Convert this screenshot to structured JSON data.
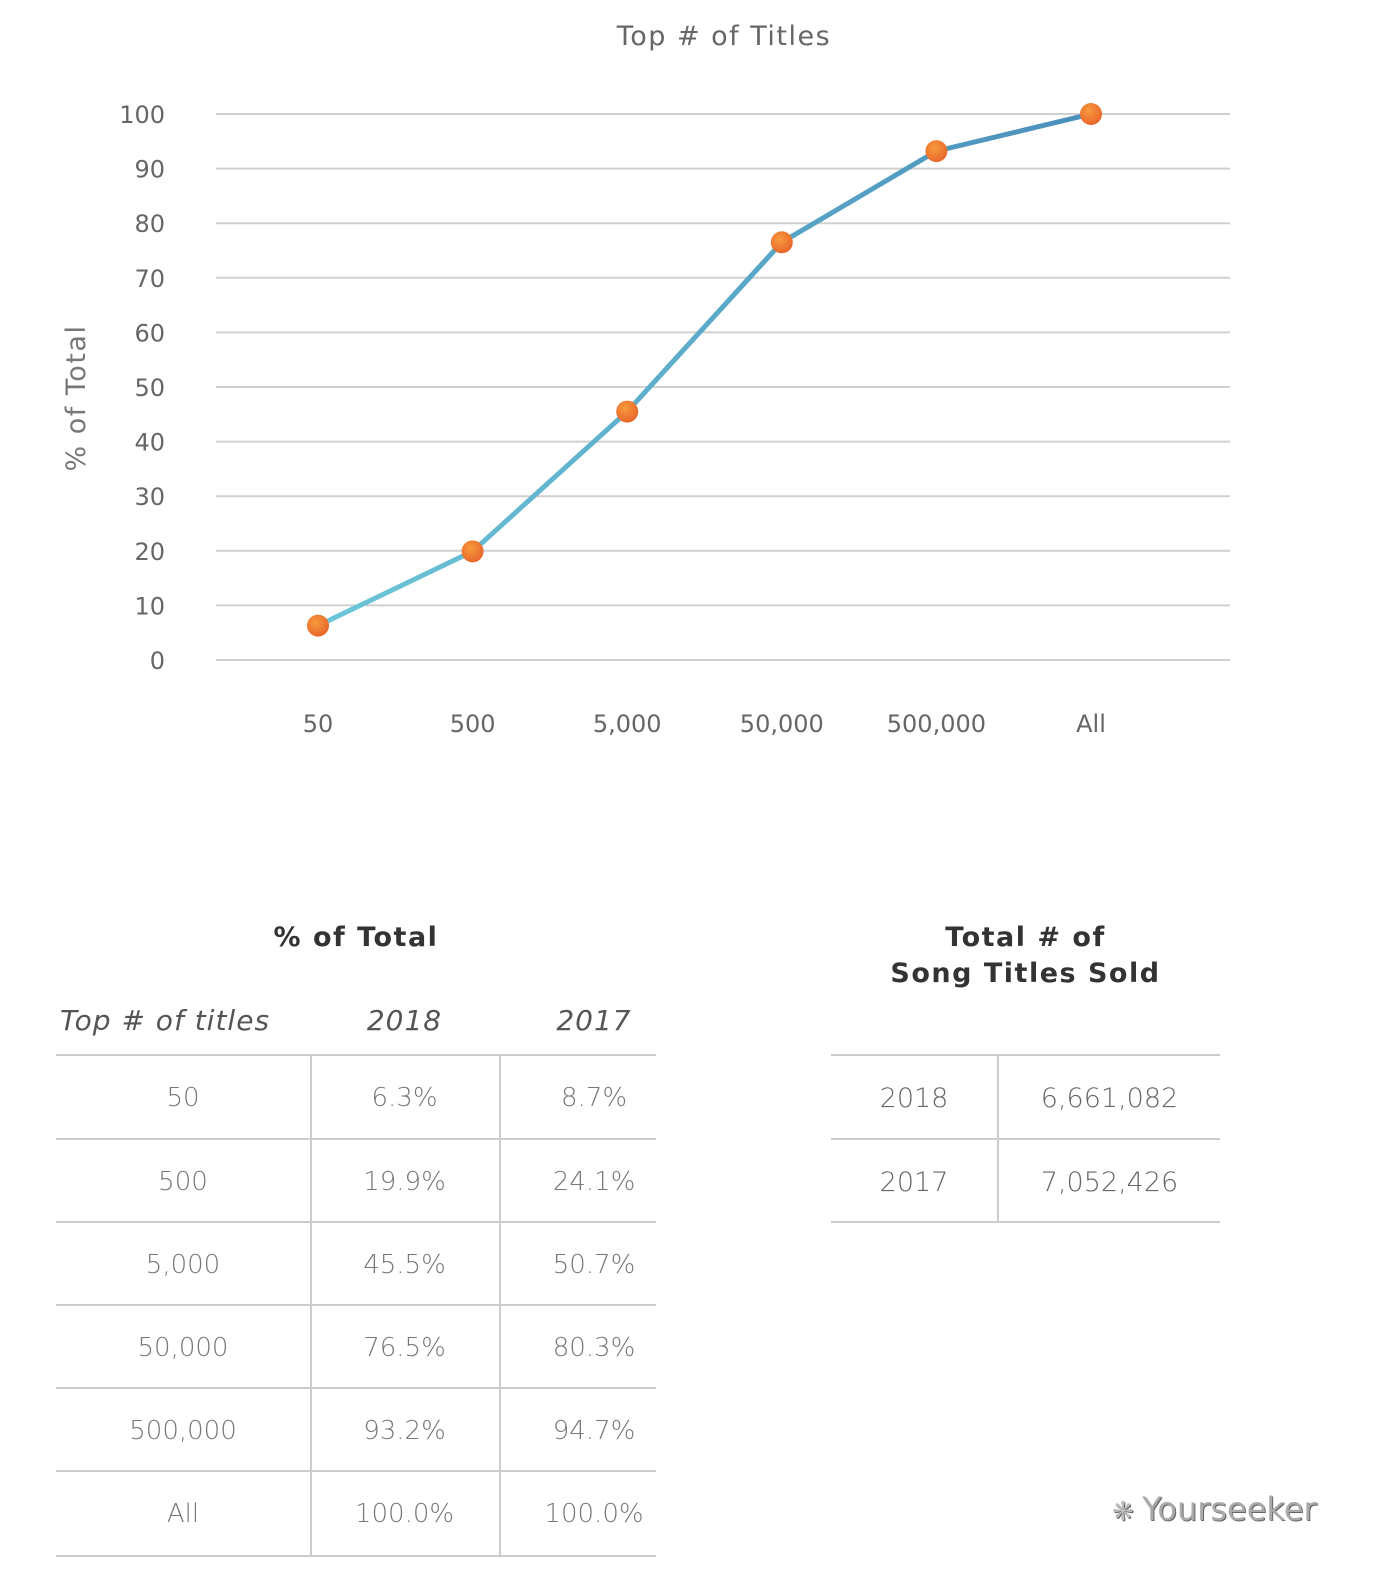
{
  "chart_data": {
    "type": "line",
    "title": "Top # of Titles",
    "xlabel": "",
    "ylabel": "% of Total",
    "categories": [
      "50",
      "500",
      "5,000",
      "50,000",
      "500,000",
      "All"
    ],
    "values": [
      6.3,
      19.9,
      45.5,
      76.5,
      93.2,
      100.0
    ],
    "ylim": [
      0,
      100
    ],
    "yticks": [
      0,
      10,
      20,
      30,
      40,
      50,
      60,
      70,
      80,
      90,
      100
    ],
    "grid": true,
    "line_color": "#5aaed0",
    "marker_color": "#f07a2a"
  },
  "pct_table": {
    "title": "% of Total",
    "headers": [
      "Top # of titles",
      "2018",
      "2017"
    ],
    "rows": [
      [
        "50",
        "6.3%",
        "8.7%"
      ],
      [
        "500",
        "19.9%",
        "24.1%"
      ],
      [
        "5,000",
        "45.5%",
        "50.7%"
      ],
      [
        "50,000",
        "76.5%",
        "80.3%"
      ],
      [
        "500,000",
        "93.2%",
        "94.7%"
      ],
      [
        "All",
        "100.0%",
        "100.0%"
      ]
    ]
  },
  "total_table": {
    "title_line1": "Total # of",
    "title_line2": "Song Titles Sold",
    "rows": [
      [
        "2018",
        "6,661,082"
      ],
      [
        "2017",
        "7,052,426"
      ]
    ]
  },
  "watermark": "Yourseeker"
}
